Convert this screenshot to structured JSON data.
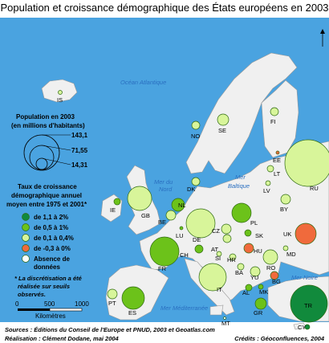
{
  "title": "Population et croissance démographique des États européens en 2003",
  "seas": {
    "atlantic": "Océan Atlantique",
    "north_1": "Mer du",
    "north_2": "Nord",
    "baltic_1": "Mer",
    "baltic_2": "Baltique",
    "med": "Mer Méditerranée",
    "black": "Mer Noire"
  },
  "legend": {
    "pop_title_1": "Population en 2003",
    "pop_title_2": "(en millions d'habitants)",
    "pop_values": [
      "143,1",
      "71,55",
      "14,31"
    ],
    "growth_title_1": "Taux de croissance",
    "growth_title_2": "démographique annuel",
    "growth_title_3": "moyen entre 1975 et 2001*",
    "classes": [
      {
        "label": "de 1,1 à 2%",
        "color": "#118a3c"
      },
      {
        "label": "de 0,5 à 1%",
        "color": "#6cc21a"
      },
      {
        "label": "de 0,1 à 0,4%",
        "color": "#d8f59a"
      },
      {
        "label": "de -0,3 à 0%",
        "color": "#f06a3c"
      },
      {
        "label": "Absence de",
        "label2": "données",
        "color": "#ffffff"
      }
    ],
    "note_1": "* La discrétisation a été",
    "note_2": "réalisée sur seuils",
    "note_3": "observés."
  },
  "scale": {
    "ticks": [
      "0",
      "500",
      "1000"
    ],
    "unit": "Kilomètres"
  },
  "footer": {
    "sources": "Sources : Éditions du Conseil de l'Europe et PNUD, 2003 et Geoatlas.com",
    "realisation": "Réalisation : Clément Dodane, mai 2004",
    "credits": "Crédits : Géoconfluences, 2004"
  },
  "countries": [
    {
      "code": "IS",
      "class": 2
    },
    {
      "code": "NO",
      "class": 2
    },
    {
      "code": "SE",
      "class": 2
    },
    {
      "code": "FI",
      "class": 2
    },
    {
      "code": "EE",
      "class": 3
    },
    {
      "code": "LT",
      "class": 2
    },
    {
      "code": "LV",
      "class": 2
    },
    {
      "code": "RU",
      "class": 2
    },
    {
      "code": "DK",
      "class": 2
    },
    {
      "code": "IE",
      "class": 1
    },
    {
      "code": "GB",
      "class": 2
    },
    {
      "code": "NL",
      "class": 1
    },
    {
      "code": "BE",
      "class": 2
    },
    {
      "code": "LU",
      "class": 1
    },
    {
      "code": "DE",
      "class": 2
    },
    {
      "code": "PL",
      "class": 1
    },
    {
      "code": "BY",
      "class": 2
    },
    {
      "code": "UK",
      "class": 3
    },
    {
      "code": "CZ",
      "class": 2
    },
    {
      "code": "SK",
      "class": 1
    },
    {
      "code": "HU",
      "class": 3
    },
    {
      "code": "AT",
      "class": 2
    },
    {
      "code": "CH",
      "class": 1
    },
    {
      "code": "SI",
      "class": 2
    },
    {
      "code": "HR",
      "class": 2
    },
    {
      "code": "BA",
      "class": 2
    },
    {
      "code": "YU",
      "class": 2
    },
    {
      "code": "RO",
      "class": 2
    },
    {
      "code": "MD",
      "class": 2
    },
    {
      "code": "BG",
      "class": 3
    },
    {
      "code": "MK",
      "class": 1
    },
    {
      "code": "AL",
      "class": 1
    },
    {
      "code": "GR",
      "class": 1
    },
    {
      "code": "TR",
      "class": 0
    },
    {
      "code": "CY",
      "class": 0
    },
    {
      "code": "MT",
      "class": 4
    },
    {
      "code": "FR",
      "class": 1
    },
    {
      "code": "ES",
      "class": 1
    },
    {
      "code": "PT",
      "class": 2
    },
    {
      "code": "IT",
      "class": 2
    }
  ]
}
